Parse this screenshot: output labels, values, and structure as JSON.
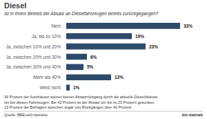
{
  "chart_data": {
    "type": "bar",
    "orientation": "horizontal",
    "title": "Diesel",
    "subtitle": "Ist in Ihrem Betrieb der Absatz an Dieselfahrzeugen bereits zurückgegangen?",
    "categories": [
      "Nein",
      "Ja, bis zu 10%",
      "Ja, zwischen 10% und 20%",
      "Ja, zwischen 20% und 30%",
      "Ja, zwischen 30% und 40%",
      "Mehr als 40%",
      "Weiß nicht"
    ],
    "values": [
      33,
      19,
      23,
      6,
      5,
      13,
      1
    ],
    "value_labels": [
      "33%",
      "19%",
      "23%",
      "6%",
      "5%",
      "13%",
      "1%"
    ],
    "data_labels": true,
    "color": "#2e4a6b",
    "xlim": [
      0,
      38
    ],
    "grid": false,
    "tick_labels": "y",
    "annotations": [
      "33 Prozent der Autohäuser spüren keinen Absatzrückgang durch die aktuelle Dieseldiskuss-",
      "ion bei diesen Fahrzeugen. Bei 42 Prozent ist der Absatz um bis zu 20 Prozent gesunken.",
      "13 Prozent der Befragten sprechen sogar von Rückgängen über 40 Prozent.",
      "Quelle: BBE/»kfz-betrieb«",
      "kfz-betrieb"
    ]
  }
}
